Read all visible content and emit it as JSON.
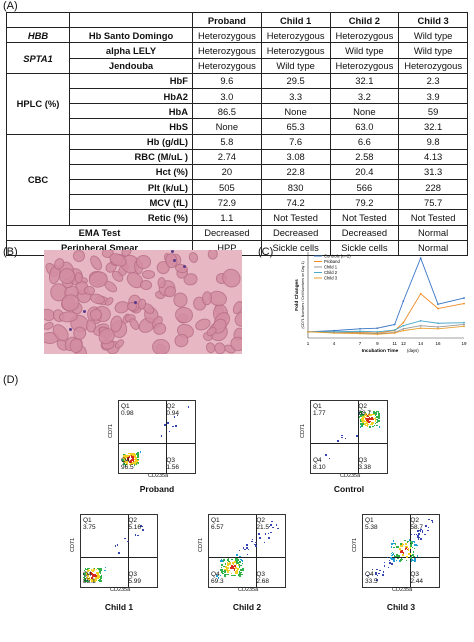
{
  "panels": {
    "a": "(A)",
    "b": "(B)",
    "c": "(C)",
    "d": "(D)"
  },
  "table": {
    "headers": [
      "",
      "",
      "Proband",
      "Child 1",
      "Child 2",
      "Child 3"
    ],
    "genes": [
      {
        "gene": "HBB",
        "variant": "Hb Santo Domingo",
        "values": [
          "Heterozygous",
          "Heterozygous",
          "Heterozygous",
          "Wild type"
        ]
      },
      {
        "gene": "SPTA1",
        "variant": "alpha LELY",
        "values": [
          "Heterozygous",
          "Heterozygous",
          "Wild type",
          "Wild type"
        ]
      },
      {
        "gene": "",
        "variant": "Jendouba",
        "values": [
          "Heterozygous",
          "Wild type",
          "Heterozygous",
          "Heterozygous"
        ]
      }
    ],
    "hplc_label": "HPLC (%)",
    "hplc": [
      {
        "name": "HbF",
        "values": [
          "9.6",
          "29.5",
          "32.1",
          "2.3"
        ]
      },
      {
        "name": "HbA2",
        "values": [
          "3.0",
          "3.3",
          "3.2",
          "3.9"
        ]
      },
      {
        "name": "HbA",
        "values": [
          "86.5",
          "None",
          "None",
          "59"
        ]
      },
      {
        "name": "HbS",
        "values": [
          "None",
          "65.3",
          "63.0",
          "32.1"
        ]
      }
    ],
    "cbc_label": "CBC",
    "cbc": [
      {
        "name": "Hb (g/dL)",
        "values": [
          "5.8",
          "7.6",
          "6.6",
          "9.8"
        ]
      },
      {
        "name": "RBC (M/uL )",
        "values": [
          "2.74",
          "3.08",
          "2.58",
          "4.13"
        ]
      },
      {
        "name": "Hct (%)",
        "values": [
          "20",
          "22.8",
          "20.4",
          "31.3"
        ]
      },
      {
        "name": "Plt (k/uL)",
        "values": [
          "505",
          "830",
          "566",
          "228"
        ]
      },
      {
        "name": "MCV (fL)",
        "values": [
          "72.9",
          "74.2",
          "79.2",
          "75.7"
        ]
      },
      {
        "name": "Retic (%)",
        "values": [
          "1.1",
          "Not Tested",
          "Not Tested",
          "Not Tested"
        ]
      }
    ],
    "ema": {
      "name": "EMA Test",
      "values": [
        "Decreased",
        "Decreased",
        "Decreased",
        "Normal"
      ]
    },
    "smear": {
      "name": "Peripheral Smear",
      "values": [
        "HPP",
        "Sickle cells",
        "Sickle cells",
        "Normal"
      ]
    }
  },
  "chart_data": {
    "type": "line",
    "x": [
      1,
      4,
      7,
      9,
      11,
      12,
      14,
      16,
      19
    ],
    "xlabel": "Incubation Time",
    "xlabel_unit": "(days)",
    "ylabel": "Fold Changes",
    "ylabel2": "(CD71 Numbers / Cell Numbers on Day 1)",
    "ylim": [
      0,
      14
    ],
    "legend_position": "top-left",
    "series": [
      {
        "name": "Controls (n=2)",
        "color": "#3a75c4",
        "values": [
          1,
          1.2,
          1.5,
          1.6,
          2.2,
          6,
          13,
          5.5,
          6.5
        ]
      },
      {
        "name": "Proband",
        "color": "#f08a24",
        "values": [
          1,
          1,
          0.9,
          0.8,
          1.2,
          2.5,
          7.2,
          4.8,
          5.6
        ]
      },
      {
        "name": "Child 1",
        "color": "#999999",
        "values": [
          1,
          0.9,
          0.8,
          0.7,
          0.9,
          1.5,
          2.0,
          1.8,
          2.2
        ]
      },
      {
        "name": "Child 2",
        "color": "#4aa8c8",
        "values": [
          1,
          1.0,
          1.1,
          1.0,
          1.3,
          2.0,
          2.8,
          2.4,
          2.5
        ]
      },
      {
        "name": "Child 3",
        "color": "#e8a030",
        "values": [
          1,
          0.8,
          0.7,
          0.6,
          0.8,
          1.2,
          1.6,
          1.5,
          1.9
        ]
      }
    ]
  },
  "flow": {
    "xlabel": "CD235a",
    "ylabel": "CD71",
    "plots": [
      {
        "caption": "Proband",
        "q1": "0.98",
        "q2": "0.94",
        "q3": "1.56",
        "q4": "96.5"
      },
      {
        "caption": "Control",
        "q1": "1.77",
        "q2": "88.7",
        "q3": "3.38",
        "q4": "8.10"
      },
      {
        "caption": "Child 1",
        "q1": "3.75",
        "q2": "5.16",
        "q3": "5.99",
        "q4": "85.1"
      },
      {
        "caption": "Child 2",
        "q1": "6.57",
        "q2": "21.5",
        "q3": "2.68",
        "q4": "69.3"
      },
      {
        "caption": "Child 3",
        "q1": "5.38",
        "q2": "58.7",
        "q3": "2.44",
        "q4": "33.5"
      }
    ]
  }
}
